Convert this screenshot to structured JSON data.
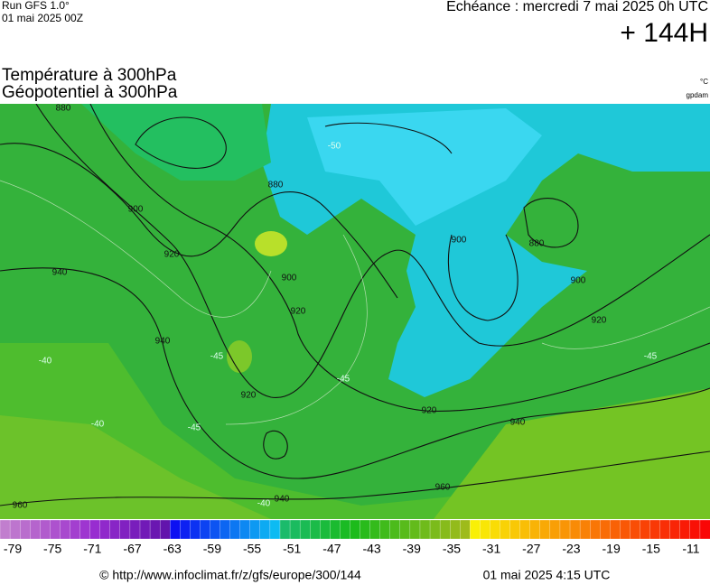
{
  "header": {
    "run": "Run GFS 1.0°",
    "run_date": "01 mai 2025 00Z",
    "echeance": "Echéance : mercredi 7 mai 2025 0h UTC",
    "lead": "+ 144H",
    "title_line1": "Température à 300hPa",
    "title_line2": "Géopotentiel à 300hPa",
    "unit_temp": "°C",
    "unit_geo": "gpdam"
  },
  "map": {
    "contour_labels": [
      "960",
      "880",
      "900",
      "920",
      "940",
      "880",
      "900",
      "920",
      "940",
      "920",
      "940",
      "900",
      "880",
      "900",
      "920",
      "920",
      "940",
      "960",
      "-45",
      "-40",
      "-50",
      "-45",
      "-45",
      "-40",
      "-40",
      "-45"
    ]
  },
  "legend": {
    "labels": [
      -79,
      -75,
      -71,
      -67,
      -63,
      -59,
      -55,
      -51,
      -47,
      -43,
      -39,
      -35,
      -31,
      -27,
      -23,
      -19,
      -15,
      -11
    ]
  },
  "footer": {
    "source": "© http://www.infoclimat.fr/z/gfs/europe/300/144",
    "generated": "01 mai 2025  4:15 UTC"
  }
}
